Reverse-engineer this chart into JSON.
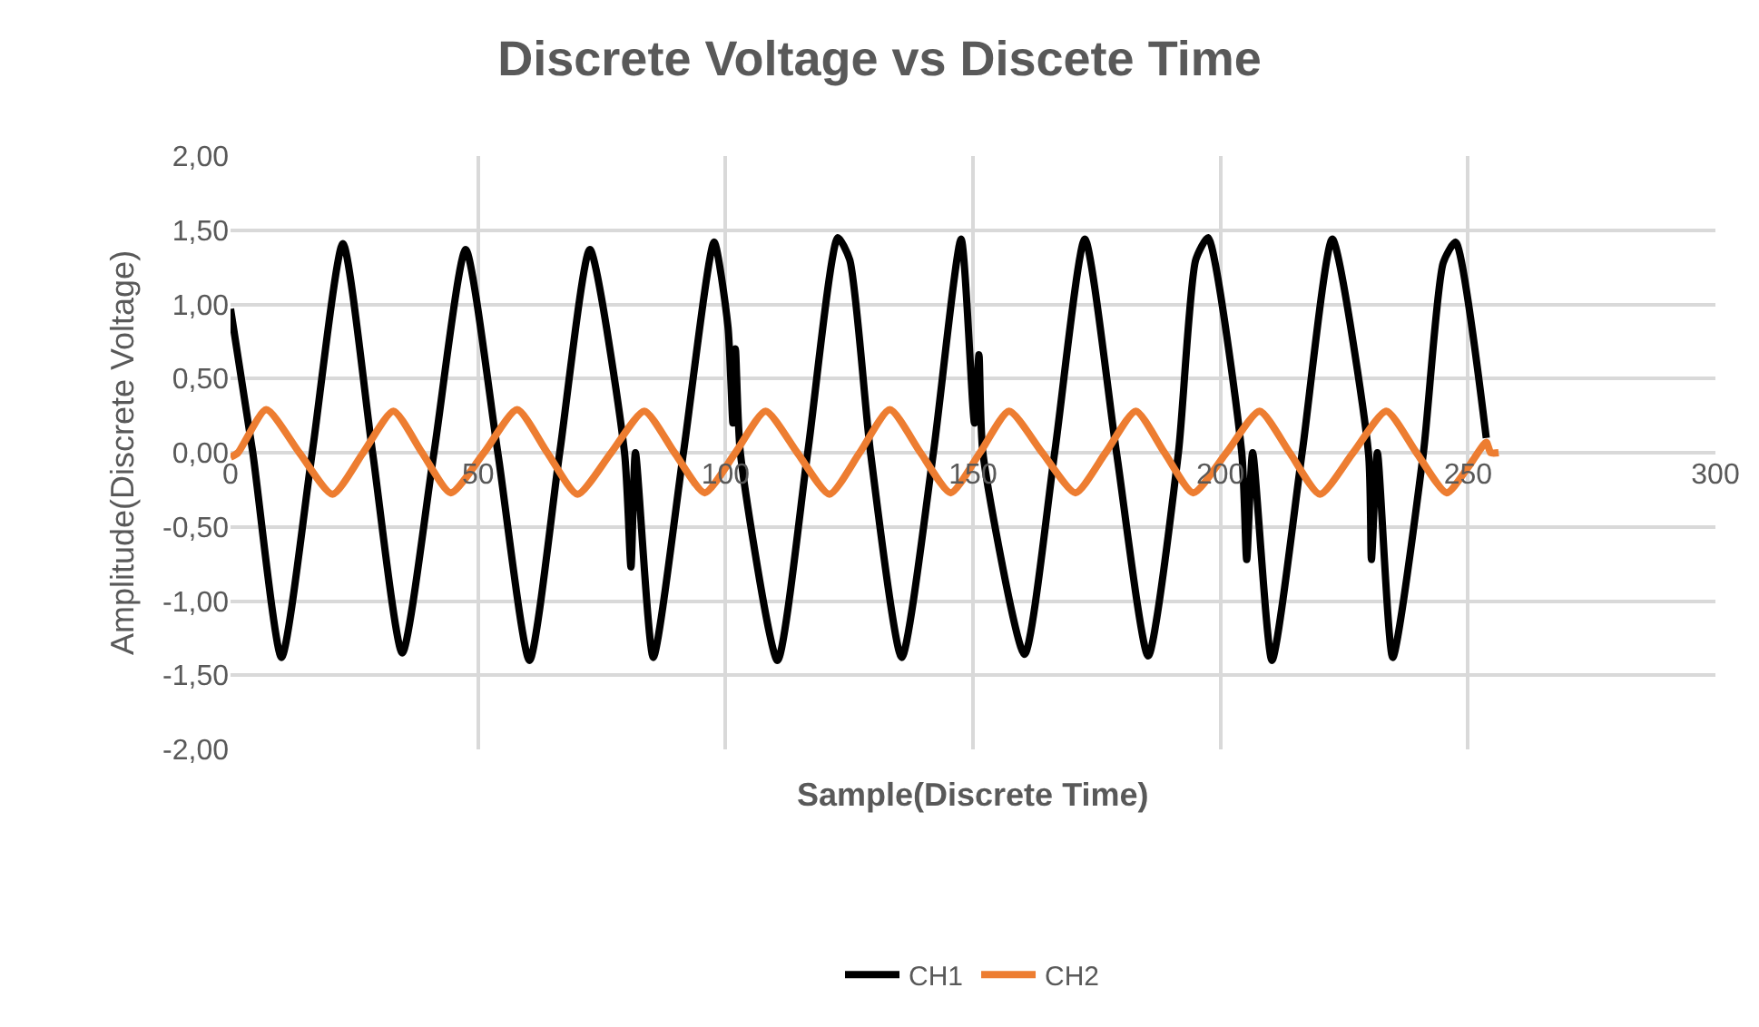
{
  "chart_data": {
    "type": "line",
    "title": "Discrete Voltage vs Discete Time",
    "xlabel": "Sample(Discrete Time)",
    "ylabel": "Amplitude(Discrete Voltage)",
    "xlim": [
      0,
      300
    ],
    "xticks": [
      0,
      50,
      100,
      150,
      200,
      250,
      300
    ],
    "ylim": [
      -2,
      2
    ],
    "yticks": [
      {
        "value": -2,
        "label": "-2,00"
      },
      {
        "value": -1.5,
        "label": "-1,50"
      },
      {
        "value": -1,
        "label": "-1,00"
      },
      {
        "value": -0.5,
        "label": "-0,50"
      },
      {
        "value": 0,
        "label": "0,00"
      },
      {
        "value": 0.5,
        "label": "0,50"
      },
      {
        "value": 1,
        "label": "1,00"
      },
      {
        "value": 1.5,
        "label": "1,50"
      },
      {
        "value": 2,
        "label": "2,00"
      }
    ],
    "grid": true,
    "legend": "bottom",
    "marker": "none",
    "line_style": "solid",
    "series": [
      {
        "name": "CH1",
        "color": "#000000",
        "x": [
          0,
          4.5,
          10.3,
          16.5,
          22.7,
          28.7,
          34.7,
          41.1,
          47.5,
          54,
          60.4,
          66.5,
          72.6,
          79.6,
          80.9,
          81.8,
          85.4,
          91.5,
          97.7,
          100.5,
          101.5,
          102,
          103,
          110.5,
          116.6,
          122.7,
          125.1,
          129.3,
          135.6,
          142,
          147.6,
          150.3,
          151.2,
          152,
          160.4,
          166.5,
          172.6,
          179,
          185.4,
          191.5,
          195,
          197.5,
          204.3,
          205.3,
          206.5,
          210.4,
          216.5,
          222.6,
          229.9,
          230.5,
          231.7,
          234.8,
          241,
          245,
          247.5,
          253.7
        ],
        "values": [
          0.97,
          0,
          -1.38,
          0,
          1.41,
          0,
          -1.35,
          0,
          1.37,
          0,
          -1.4,
          0,
          1.37,
          0,
          -0.77,
          0,
          -1.38,
          0,
          1.42,
          0.85,
          0.2,
          0.7,
          0,
          -1.4,
          0,
          1.45,
          1.3,
          0,
          -1.38,
          0,
          1.44,
          0.2,
          0.66,
          0,
          -1.36,
          0,
          1.44,
          0,
          -1.37,
          0,
          1.3,
          1.45,
          0,
          -0.72,
          0,
          -1.4,
          0,
          1.44,
          0,
          -0.72,
          0,
          -1.38,
          0,
          1.28,
          1.42,
          0.1
        ]
      },
      {
        "name": "CH2",
        "color": "#ed7d31",
        "x": [
          0,
          1.5,
          7.2,
          13.9,
          20.6,
          26.8,
          32.9,
          38.7,
          44.5,
          51.2,
          57.9,
          64,
          70.1,
          76.9,
          83.6,
          89.7,
          95.8,
          102,
          108.1,
          114.5,
          121,
          127.1,
          133.2,
          139.4,
          145.5,
          151.4,
          157.3,
          164,
          170.7,
          176.8,
          182.9,
          188.7,
          194.5,
          201.2,
          207.9,
          214,
          220.1,
          226.8,
          233.5,
          239.6,
          245.7,
          250,
          253.7,
          254.6,
          256.2
        ],
        "values": [
          -0.03,
          0,
          0.29,
          0,
          -0.28,
          0,
          0.28,
          0,
          -0.27,
          0,
          0.29,
          0,
          -0.28,
          0,
          0.28,
          0,
          -0.27,
          0,
          0.28,
          0,
          -0.28,
          0,
          0.29,
          0,
          -0.27,
          0,
          0.28,
          0,
          -0.27,
          0,
          0.28,
          0,
          -0.27,
          0,
          0.28,
          0,
          -0.28,
          0,
          0.28,
          0,
          -0.27,
          -0.1,
          0.07,
          0,
          0
        ]
      }
    ]
  }
}
